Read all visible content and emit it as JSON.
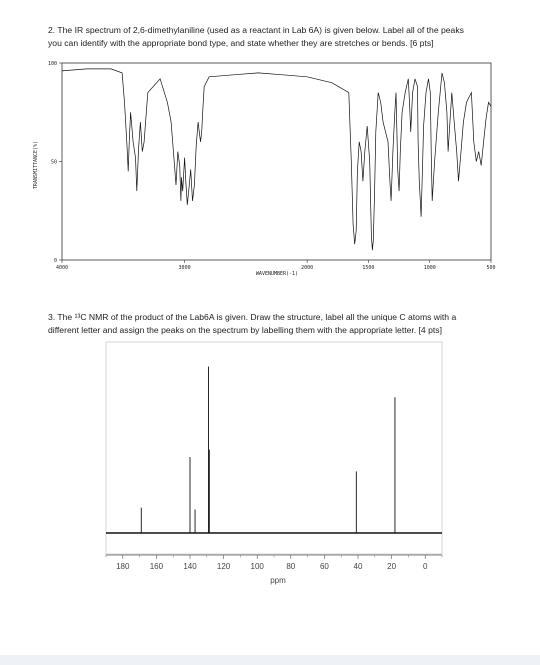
{
  "question2": {
    "line1": "2.  The IR spectrum of 2,6-dimethylaniline (used as a reactant in Lab 6A) is given below.  Label all of the peaks",
    "line2": "you can identify with the appropriate bond type, and state whether they are stretches or bends.  [6 pts]"
  },
  "question3": {
    "line1": "3.  The ¹³C NMR of the product of the Lab6A is given.  Draw the structure, label all the unique C atoms with a",
    "line2": "different letter and assign the peaks on the spectrum by labelling them with the appropriate letter.  [4 pts]"
  },
  "chart_data": [
    {
      "type": "line",
      "title": "",
      "xlabel": "WAVENUMBER(-1)",
      "ylabel": "TRANSMITTANCE(%)",
      "xlim": [
        4000,
        500
      ],
      "ylim": [
        0,
        100
      ],
      "x_ticks": [
        "4000",
        "3000",
        "2000",
        "1500",
        "1000",
        "500"
      ],
      "y_ticks": [
        "100",
        "50",
        "0"
      ],
      "grid": false,
      "series": [
        {
          "x": [
            4000,
            3800,
            3600,
            3510,
            3490,
            3470,
            3460,
            3450,
            3440,
            3420,
            3400,
            3390,
            3375,
            3360,
            3345,
            3330,
            3300,
            3200,
            3140,
            3110,
            3085,
            3070,
            3055,
            3040,
            3030,
            3025,
            3015,
            3000,
            2990,
            2978,
            2965,
            2950,
            2935,
            2920,
            2905,
            2890,
            2870,
            2860,
            2850,
            2840,
            2800,
            2600,
            2400,
            2200,
            2000,
            1800,
            1660,
            1640,
            1625,
            1612,
            1600,
            1590,
            1575,
            1560,
            1545,
            1530,
            1510,
            1490,
            1476,
            1468,
            1460,
            1450,
            1440,
            1420,
            1400,
            1380,
            1340,
            1325,
            1315,
            1300,
            1285,
            1275,
            1268,
            1260,
            1250,
            1240,
            1225,
            1200,
            1175,
            1165,
            1155,
            1140,
            1120,
            1100,
            1095,
            1085,
            1070,
            1060,
            1050,
            1030,
            1010,
            995,
            988,
            980,
            960,
            930,
            900,
            880,
            860,
            850,
            840,
            820,
            800,
            780,
            765,
            745,
            725,
            700,
            660,
            640,
            620,
            600,
            580,
            560,
            540,
            520,
            500
          ],
          "values": [
            96,
            97,
            97,
            95,
            80,
            58,
            45,
            62,
            75,
            60,
            52,
            35,
            57,
            70,
            55,
            60,
            85,
            92,
            80,
            70,
            50,
            38,
            55,
            48,
            30,
            42,
            35,
            52,
            40,
            28,
            36,
            46,
            30,
            38,
            58,
            70,
            60,
            65,
            78,
            88,
            93,
            94,
            95,
            94,
            93,
            90,
            85,
            50,
            18,
            8,
            15,
            45,
            60,
            55,
            40,
            55,
            68,
            50,
            12,
            5,
            10,
            35,
            65,
            85,
            80,
            70,
            60,
            40,
            30,
            55,
            75,
            85,
            65,
            45,
            35,
            55,
            75,
            85,
            92,
            80,
            65,
            85,
            92,
            88,
            60,
            40,
            22,
            45,
            68,
            85,
            92,
            85,
            55,
            30,
            50,
            75,
            95,
            90,
            75,
            55,
            65,
            85,
            70,
            55,
            40,
            55,
            70,
            80,
            85,
            60,
            50,
            55,
            48,
            60,
            72,
            80,
            78
          ]
        }
      ]
    },
    {
      "type": "bar",
      "title": "",
      "xlabel": "ppm",
      "ylabel": "",
      "xlim": [
        190,
        -10
      ],
      "x_ticks": [
        "180",
        "160",
        "140",
        "120",
        "100",
        "80",
        "60",
        "40",
        "20",
        "0"
      ],
      "peaks_ppm": [
        169,
        140,
        137,
        129,
        128.5,
        41,
        18
      ],
      "peak_heights": [
        0.14,
        0.42,
        0.13,
        0.92,
        0.46,
        0.34,
        0.75
      ]
    }
  ]
}
